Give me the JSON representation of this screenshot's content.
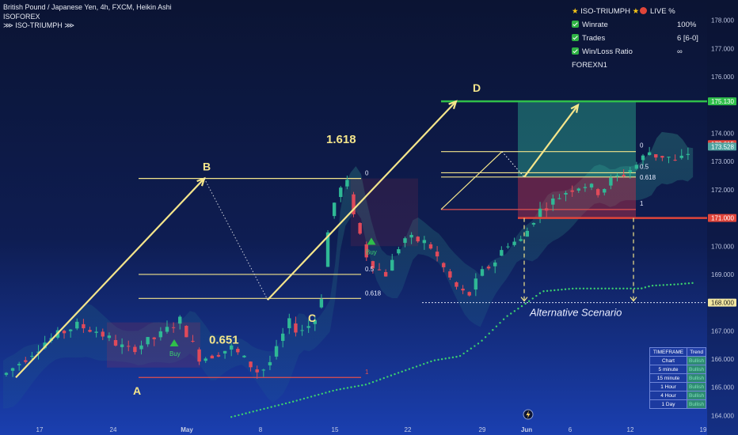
{
  "header": {
    "symbol_line": "British Pound / Japanese Yen, 4h, FXCM, Heikin Ashi",
    "author": "ISOFOREX",
    "indicator": "⋙ ISO-TRIUMPH ⋙"
  },
  "stats_panel": {
    "title": "ISO-TRIUMPH",
    "live_label": "LIVE %",
    "rows": [
      {
        "label": "Winrate",
        "value": "100%"
      },
      {
        "label": "Trades",
        "value": "6 [6-0]"
      },
      {
        "label": "Win/Loss Ratio",
        "value": "∞"
      }
    ],
    "footer": "FOREXN1"
  },
  "timeframe_table": {
    "header": [
      "TIMEFRAME",
      "Trend"
    ],
    "rows": [
      {
        "tf": "Chart",
        "trend": "Bullish"
      },
      {
        "tf": "5 minute",
        "trend": "Bullish"
      },
      {
        "tf": "15 minute",
        "trend": "Bullish"
      },
      {
        "tf": "1 Hour",
        "trend": "Bullish"
      },
      {
        "tf": "4 Hour",
        "trend": "Bullish"
      },
      {
        "tf": "1 Day",
        "trend": "Bullish"
      }
    ]
  },
  "chart_data": {
    "type": "candlestick",
    "title": "British Pound / Japanese Yen, 4h, FXCM, Heikin Ashi",
    "x_ticks": [
      "17",
      "24",
      "May",
      "8",
      "15",
      "22",
      "29",
      "Jun",
      "6",
      "12",
      "19"
    ],
    "y_ticks": [
      "164.000",
      "165.000",
      "166.000",
      "167.000",
      "168.000",
      "169.000",
      "170.000",
      "171.000",
      "172.000",
      "173.000",
      "174.000",
      "175.000",
      "176.000",
      "177.000",
      "178.000"
    ],
    "ylim": [
      163.9,
      178.3
    ],
    "price_badges": [
      {
        "label": "175.130",
        "value": 175.13,
        "color": "#2fbf4a"
      },
      {
        "label": "173.615",
        "value": 173.615,
        "color": "#e0453a"
      },
      {
        "label": "173.528",
        "value": 173.528,
        "color": "#4fa3a0"
      },
      {
        "label": "171.000",
        "value": 171.0,
        "color": "#e0453a"
      },
      {
        "label": "168.000",
        "value": 168.0,
        "color": "#f2e6a0"
      }
    ],
    "points": [
      {
        "label": "A",
        "x": 24.7,
        "y": 165.35
      },
      {
        "label": "B",
        "x": 33.1,
        "y": 172.4
      },
      {
        "label": "C",
        "x": 44.8,
        "y": 168.1
      },
      {
        "label": "D",
        "x": 58.6,
        "y": 175.0
      }
    ],
    "ratios": [
      "1.618",
      "0.651"
    ],
    "fib_labels": [
      "0",
      "0.5",
      "0.618",
      "1"
    ],
    "fib_labels_right": [
      "0",
      "0.5",
      "0.618",
      "1"
    ],
    "signals": [
      "Buy",
      "Buy"
    ],
    "annotation": "Alternative Scenario"
  }
}
